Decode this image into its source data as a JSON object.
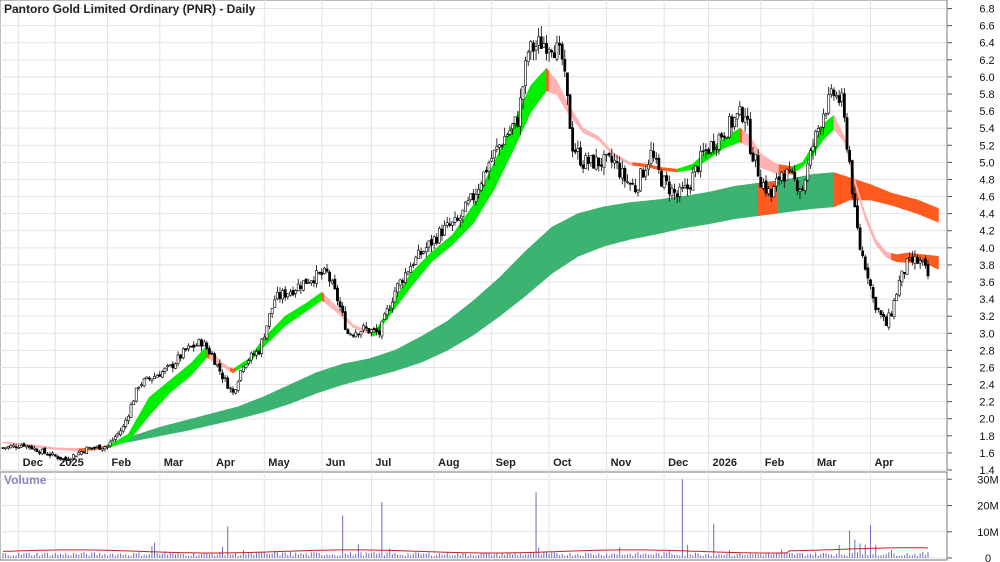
{
  "chart_data": [
    {
      "type": "candlestick",
      "title": "Pantoro Gold Limited Ordinary (PNR) - Daily",
      "xlabel": "",
      "ylabel": "",
      "ylim": [
        1.4,
        6.9
      ],
      "y_ticks": [
        "6.8",
        "6.6",
        "6.4",
        "6.2",
        "6.0",
        "5.8",
        "5.6",
        "5.4",
        "5.2",
        "5.0",
        "4.8",
        "4.6",
        "4.4",
        "4.2",
        "4.0",
        "3.8",
        "3.6",
        "3.4",
        "3.2",
        "3.0",
        "2.8",
        "2.6",
        "2.4",
        "2.2",
        "2.0",
        "1.8",
        "1.6",
        "1.4"
      ],
      "x_ticks": [
        "Dec",
        "2025",
        "Feb",
        "Mar",
        "Apr",
        "May",
        "Jun",
        "Jul",
        "Aug",
        "Sep",
        "Oct",
        "Nov",
        "Dec",
        "2026",
        "Feb",
        "Mar",
        "Apr"
      ],
      "x_tick_index": [
        6,
        20,
        40,
        60,
        80,
        100,
        122,
        141,
        165,
        187,
        209,
        231,
        253,
        270,
        290,
        310,
        332
      ],
      "grid": true,
      "total_bars": 355,
      "price_anchors": [
        [
          0,
          1.66
        ],
        [
          8,
          1.7
        ],
        [
          16,
          1.6
        ],
        [
          24,
          1.52
        ],
        [
          32,
          1.65
        ],
        [
          40,
          1.68
        ],
        [
          46,
          1.9
        ],
        [
          52,
          2.4
        ],
        [
          58,
          2.5
        ],
        [
          64,
          2.6
        ],
        [
          70,
          2.8
        ],
        [
          76,
          2.9
        ],
        [
          80,
          2.75
        ],
        [
          84,
          2.5
        ],
        [
          88,
          2.3
        ],
        [
          92,
          2.65
        ],
        [
          98,
          2.8
        ],
        [
          104,
          3.4
        ],
        [
          110,
          3.5
        ],
        [
          118,
          3.65
        ],
        [
          124,
          3.7
        ],
        [
          128,
          3.4
        ],
        [
          132,
          3.0
        ],
        [
          138,
          3.05
        ],
        [
          144,
          3.0
        ],
        [
          150,
          3.5
        ],
        [
          156,
          3.8
        ],
        [
          162,
          4.0
        ],
        [
          168,
          4.2
        ],
        [
          174,
          4.3
        ],
        [
          180,
          4.6
        ],
        [
          186,
          5.0
        ],
        [
          192,
          5.3
        ],
        [
          197,
          5.5
        ],
        [
          201,
          6.3
        ],
        [
          206,
          6.4
        ],
        [
          210,
          6.4
        ],
        [
          214,
          6.2
        ],
        [
          218,
          5.2
        ],
        [
          222,
          5.0
        ],
        [
          228,
          5.0
        ],
        [
          234,
          5.0
        ],
        [
          238,
          4.8
        ],
        [
          242,
          4.7
        ],
        [
          248,
          5.1
        ],
        [
          252,
          4.8
        ],
        [
          258,
          4.6
        ],
        [
          262,
          4.7
        ],
        [
          268,
          5.1
        ],
        [
          274,
          5.3
        ],
        [
          280,
          5.5
        ],
        [
          284,
          5.6
        ],
        [
          286,
          5.2
        ],
        [
          288,
          5.0
        ],
        [
          290,
          4.8
        ],
        [
          294,
          4.6
        ],
        [
          298,
          4.9
        ],
        [
          302,
          4.8
        ],
        [
          306,
          4.7
        ],
        [
          310,
          5.2
        ],
        [
          314,
          5.6
        ],
        [
          318,
          5.8
        ],
        [
          321,
          5.7
        ],
        [
          324,
          5.0
        ],
        [
          326,
          4.4
        ],
        [
          328,
          4.0
        ],
        [
          331,
          3.7
        ],
        [
          333,
          3.4
        ],
        [
          336,
          3.2
        ],
        [
          338,
          3.1
        ],
        [
          340,
          3.25
        ],
        [
          343,
          3.6
        ],
        [
          346,
          3.8
        ],
        [
          349,
          3.85
        ],
        [
          352,
          3.8
        ],
        [
          355,
          3.6
        ],
        [
          358,
          3.45
        ]
      ],
      "short_ribbon_anchors": [
        [
          0,
          1.73,
          1.73
        ],
        [
          10,
          1.7,
          1.69
        ],
        [
          20,
          1.66,
          1.65
        ],
        [
          30,
          1.65,
          1.63
        ],
        [
          40,
          1.68,
          1.67
        ],
        [
          48,
          1.82,
          1.75
        ],
        [
          56,
          2.25,
          2.05
        ],
        [
          64,
          2.45,
          2.32
        ],
        [
          72,
          2.65,
          2.52
        ],
        [
          78,
          2.85,
          2.73
        ],
        [
          84,
          2.65,
          2.62
        ],
        [
          88,
          2.58,
          2.55
        ],
        [
          94,
          2.7,
          2.66
        ],
        [
          100,
          2.95,
          2.86
        ],
        [
          108,
          3.2,
          3.1
        ],
        [
          116,
          3.35,
          3.27
        ],
        [
          122,
          3.48,
          3.4
        ],
        [
          128,
          3.3,
          3.25
        ],
        [
          134,
          3.1,
          3.08
        ],
        [
          142,
          3.0,
          2.98
        ],
        [
          148,
          3.3,
          3.22
        ],
        [
          156,
          3.7,
          3.55
        ],
        [
          164,
          3.95,
          3.85
        ],
        [
          172,
          4.15,
          4.05
        ],
        [
          180,
          4.5,
          4.3
        ],
        [
          188,
          5.0,
          4.7
        ],
        [
          196,
          5.5,
          5.2
        ],
        [
          202,
          5.9,
          5.6
        ],
        [
          208,
          6.1,
          5.85
        ],
        [
          212,
          5.95,
          5.8
        ],
        [
          216,
          5.7,
          5.6
        ],
        [
          222,
          5.4,
          5.36
        ],
        [
          228,
          5.3,
          5.27
        ],
        [
          234,
          5.1,
          5.08
        ],
        [
          240,
          5.0,
          4.98
        ],
        [
          246,
          4.98,
          4.96
        ],
        [
          252,
          4.94,
          4.92
        ],
        [
          258,
          4.92,
          4.9
        ],
        [
          264,
          4.98,
          4.93
        ],
        [
          270,
          5.15,
          5.05
        ],
        [
          276,
          5.28,
          5.18
        ],
        [
          282,
          5.4,
          5.25
        ],
        [
          286,
          5.3,
          5.2
        ],
        [
          290,
          5.1,
          4.95
        ],
        [
          296,
          4.98,
          4.88
        ],
        [
          302,
          4.95,
          4.88
        ],
        [
          306,
          5.0,
          4.96
        ],
        [
          310,
          5.2,
          5.1
        ],
        [
          314,
          5.45,
          5.28
        ],
        [
          318,
          5.55,
          5.4
        ],
        [
          322,
          5.3,
          5.25
        ],
        [
          326,
          4.8,
          4.75
        ],
        [
          330,
          4.4,
          4.35
        ],
        [
          334,
          4.1,
          4.05
        ],
        [
          338,
          3.95,
          3.9
        ],
        [
          342,
          3.92,
          3.85
        ],
        [
          346,
          3.94,
          3.84
        ],
        [
          352,
          3.92,
          3.85
        ],
        [
          358,
          3.9,
          3.76
        ]
      ],
      "long_ribbon_anchors": [
        [
          40,
          1.7,
          1.69
        ],
        [
          50,
          1.8,
          1.74
        ],
        [
          60,
          1.9,
          1.8
        ],
        [
          70,
          1.98,
          1.86
        ],
        [
          80,
          2.06,
          1.93
        ],
        [
          90,
          2.14,
          2.0
        ],
        [
          100,
          2.26,
          2.08
        ],
        [
          110,
          2.4,
          2.18
        ],
        [
          120,
          2.54,
          2.3
        ],
        [
          130,
          2.64,
          2.4
        ],
        [
          140,
          2.7,
          2.48
        ],
        [
          150,
          2.8,
          2.56
        ],
        [
          160,
          2.96,
          2.66
        ],
        [
          170,
          3.14,
          2.8
        ],
        [
          180,
          3.38,
          2.98
        ],
        [
          190,
          3.65,
          3.2
        ],
        [
          200,
          3.96,
          3.44
        ],
        [
          210,
          4.24,
          3.7
        ],
        [
          220,
          4.4,
          3.9
        ],
        [
          230,
          4.48,
          4.02
        ],
        [
          240,
          4.53,
          4.1
        ],
        [
          250,
          4.56,
          4.16
        ],
        [
          260,
          4.6,
          4.23
        ],
        [
          270,
          4.65,
          4.28
        ],
        [
          280,
          4.72,
          4.34
        ],
        [
          290,
          4.76,
          4.38
        ],
        [
          300,
          4.8,
          4.42
        ],
        [
          310,
          4.86,
          4.46
        ],
        [
          318,
          4.88,
          4.48
        ],
        [
          324,
          4.82,
          4.56
        ],
        [
          332,
          4.74,
          4.56
        ],
        [
          340,
          4.64,
          4.5
        ],
        [
          350,
          4.56,
          4.4
        ],
        [
          358,
          4.46,
          4.3
        ]
      ],
      "volume_panel": {
        "title": "Volume",
        "ylim": [
          0,
          32
        ],
        "y_ticks": [
          "30M",
          "20M",
          "10M",
          "0"
        ],
        "base_level": 1.5,
        "avg_level": 2.5,
        "spikes": [
          [
            57,
            4.5
          ],
          [
            58,
            5.8
          ],
          [
            62,
            2.6
          ],
          [
            84,
            4.2
          ],
          [
            86,
            12.0
          ],
          [
            92,
            3.0
          ],
          [
            98,
            2.5
          ],
          [
            104,
            2.8
          ],
          [
            110,
            2.4
          ],
          [
            130,
            16.2
          ],
          [
            136,
            5.2
          ],
          [
            145,
            21.3
          ],
          [
            148,
            3.6
          ],
          [
            204,
            25.0
          ],
          [
            205,
            4.0
          ],
          [
            236,
            4.2
          ],
          [
            255,
            3.0
          ],
          [
            260,
            30.0
          ],
          [
            262,
            5.0
          ],
          [
            272,
            13.0
          ],
          [
            278,
            3.0
          ],
          [
            298,
            3.2
          ],
          [
            320,
            5.0
          ],
          [
            324,
            10.5
          ],
          [
            326,
            7.0
          ],
          [
            328,
            5.5
          ],
          [
            330,
            5.0
          ],
          [
            332,
            12.5
          ],
          [
            334,
            5.0
          ],
          [
            340,
            3.0
          ]
        ]
      }
    }
  ],
  "colors": {
    "candle_up": "#ffffff",
    "candle_down": "#000000",
    "short_ribbon_up": "#00ee00",
    "short_ribbon_down_fast": "#ff5a1f",
    "short_ribbon_down_soft": "#ffb3b3",
    "long_ribbon_up": "#3cb371",
    "long_ribbon_down": "#ff5a1f",
    "volume_bar": "#6b6bc0",
    "volume_avg": "#c62020",
    "grid": "#e3e3e3",
    "axis": "#555555"
  }
}
